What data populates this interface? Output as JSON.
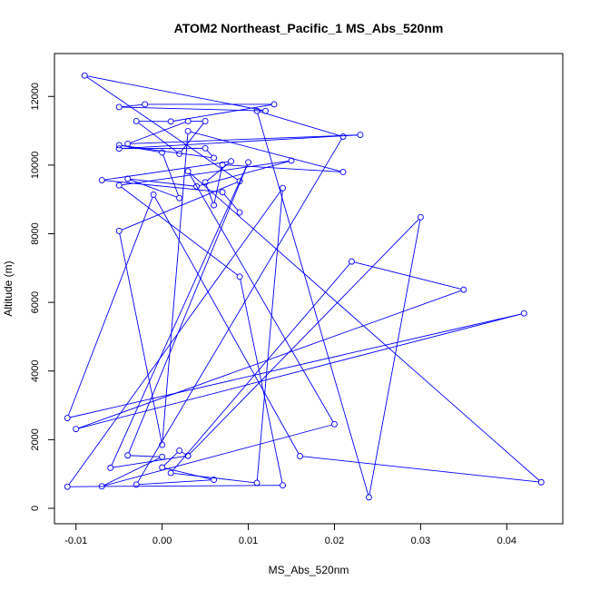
{
  "chart_data": {
    "type": "line",
    "title": "ATOM2 Northeast_Pacific_1 MS_Abs_520nm",
    "xlabel": "MS_Abs_520nm",
    "ylabel": "Altitude (m)",
    "xlim": [
      -0.0125,
      0.0465
    ],
    "ylim": [
      -450,
      13250
    ],
    "xticks": [
      -0.01,
      0.0,
      0.01,
      0.02,
      0.03,
      0.04
    ],
    "xtick_labels": [
      "-0.01",
      "0.00",
      "0.01",
      "0.02",
      "0.03",
      "0.04"
    ],
    "yticks": [
      0,
      2000,
      4000,
      6000,
      8000,
      10000,
      12000
    ],
    "ytick_labels": [
      "0",
      "2000",
      "4000",
      "6000",
      "8000",
      "10000",
      "12000"
    ],
    "series": [
      {
        "color": "#0000ff",
        "marker": "open-circle",
        "x": [
          0.003,
          0.002,
          0.0,
          0.006,
          -0.003,
          0.021,
          0.011,
          0.024,
          0.03,
          0.003,
          -0.006,
          0.01,
          -0.004,
          0.0,
          -0.007,
          0.02,
          0.003,
          0.044,
          0.016,
          -0.001,
          -0.011,
          0.042,
          -0.01,
          0.035,
          0.022,
          0.001,
          0.011,
          0.014,
          -0.011,
          0.014,
          0.009,
          -0.005,
          0.015,
          0.004,
          -0.004,
          0.002,
          0.0,
          -0.005,
          0.006,
          0.005,
          -0.005,
          0.023,
          -0.004,
          0.003,
          0.005,
          0.002,
          -0.003,
          0.001,
          0.013,
          -0.002,
          -0.005,
          0.012,
          -0.009,
          0.009,
          -0.005,
          0.0,
          0.003,
          0.021,
          0.007,
          0.006,
          0.005,
          0.008,
          -0.007,
          0.007,
          0.009
        ],
        "y": [
          1530,
          1680,
          1190,
          830,
          690,
          10830,
          11580,
          320,
          8480,
          1530,
          1180,
          10080,
          1540,
          1500,
          640,
          2450,
          9820,
          760,
          1520,
          9140,
          2630,
          5680,
          2310,
          6370,
          7190,
          1030,
          740,
          9330,
          630,
          670,
          6750,
          9410,
          10130,
          9380,
          9600,
          9040,
          10370,
          10580,
          10210,
          10490,
          10480,
          10880,
          10620,
          11280,
          11280,
          10330,
          11280,
          11270,
          11770,
          11770,
          11690,
          11580,
          12610,
          9530,
          8080,
          1850,
          10990,
          9800,
          10010,
          8830,
          9500,
          10110,
          9560,
          9210,
          8620
        ]
      }
    ]
  }
}
